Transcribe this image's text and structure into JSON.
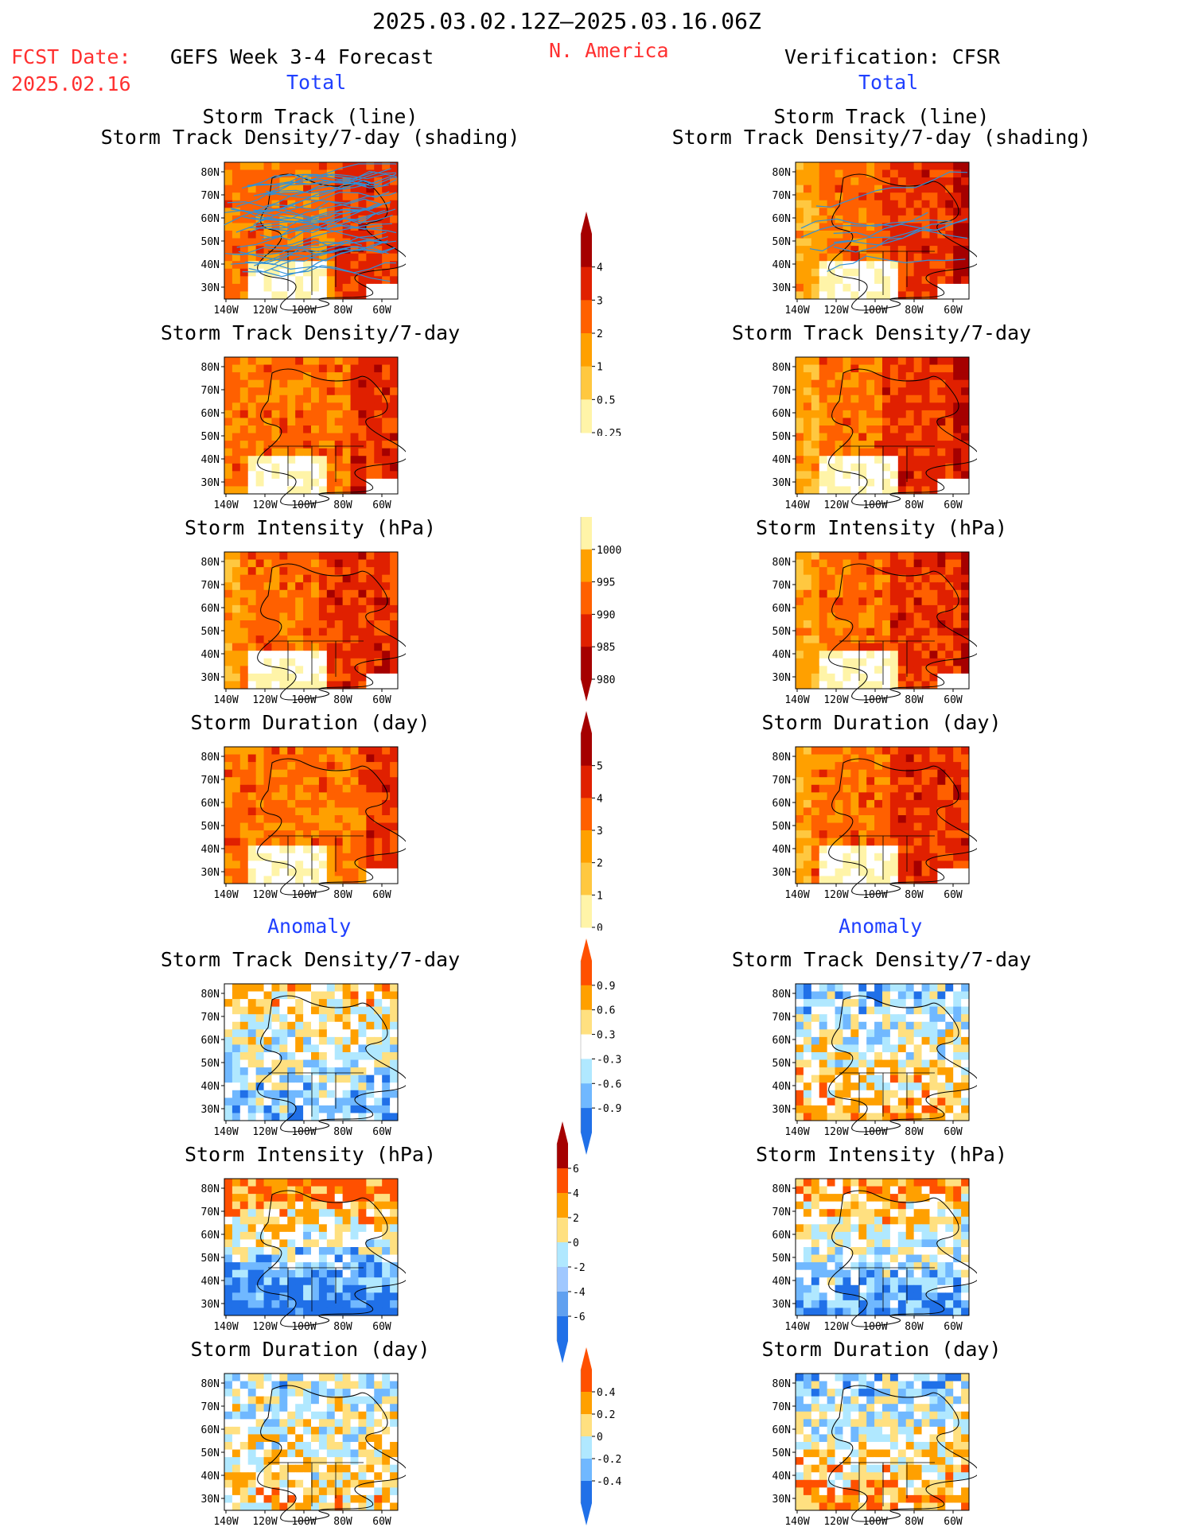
{
  "header": {
    "period": "2025.03.02.12Z–2025.03.16.06Z",
    "fcst_label": "FCST Date:",
    "fcst_date": "2025.02.16",
    "left_title": "GEFS Week 3-4 Forecast",
    "region": "N. America",
    "right_title": "Verification: CFSR"
  },
  "sections": {
    "total": "Total",
    "anomaly": "Anomaly"
  },
  "panel_titles": {
    "track_line": "Storm Track (line)",
    "track_shading": "Storm Track Density/7-day (shading)",
    "density": "Storm Track Density/7-day",
    "intensity": "Storm Intensity (hPa)",
    "duration": "Storm Duration (day)"
  },
  "map_axes": {
    "lat_labels": [
      "80N",
      "70N",
      "60N",
      "50N",
      "40N",
      "30N"
    ],
    "lon_labels": [
      "140W",
      "120W",
      "100W",
      "80W",
      "60W"
    ]
  },
  "colorbars": {
    "density_total": {
      "labels": [
        "4",
        "3",
        "2",
        "1",
        "0.5",
        "0.25"
      ],
      "colors": [
        "#a50000",
        "#e02000",
        "#ff6000",
        "#ffa000",
        "#ffc840",
        "#fff4a8"
      ]
    },
    "intensity_total": {
      "labels": [
        "1000",
        "995",
        "990",
        "985",
        "980"
      ],
      "colors": [
        "#fff4a8",
        "#ffa000",
        "#ff6000",
        "#e02000",
        "#a50000"
      ]
    },
    "duration_total": {
      "labels": [
        "5",
        "4",
        "3",
        "2",
        "1",
        "0"
      ],
      "colors": [
        "#a50000",
        "#e02000",
        "#ff6000",
        "#ffa000",
        "#ffc840",
        "#fff4a8"
      ]
    },
    "density_anom": {
      "labels": [
        "0.9",
        "0.6",
        "0.3",
        "-0.3",
        "-0.6",
        "-0.9"
      ],
      "colors": [
        "#ff5000",
        "#ffa000",
        "#ffe080",
        "#ffffff",
        "#b0e8ff",
        "#70b8ff",
        "#2070e8"
      ]
    },
    "intensity_anom": {
      "labels": [
        "6",
        "4",
        "2",
        "0",
        "-2",
        "-4",
        "-6"
      ],
      "colors": [
        "#a50000",
        "#ff5000",
        "#ffa000",
        "#ffe080",
        "#b0e8ff",
        "#a0c8ff",
        "#60a0f0",
        "#2070e8"
      ]
    },
    "duration_anom": {
      "labels": [
        "0.4",
        "0.2",
        "0",
        "-0.2",
        "-0.4"
      ],
      "colors": [
        "#ff5000",
        "#ffa000",
        "#ffe080",
        "#b0e8ff",
        "#70b8ff",
        "#2070e8"
      ]
    }
  }
}
